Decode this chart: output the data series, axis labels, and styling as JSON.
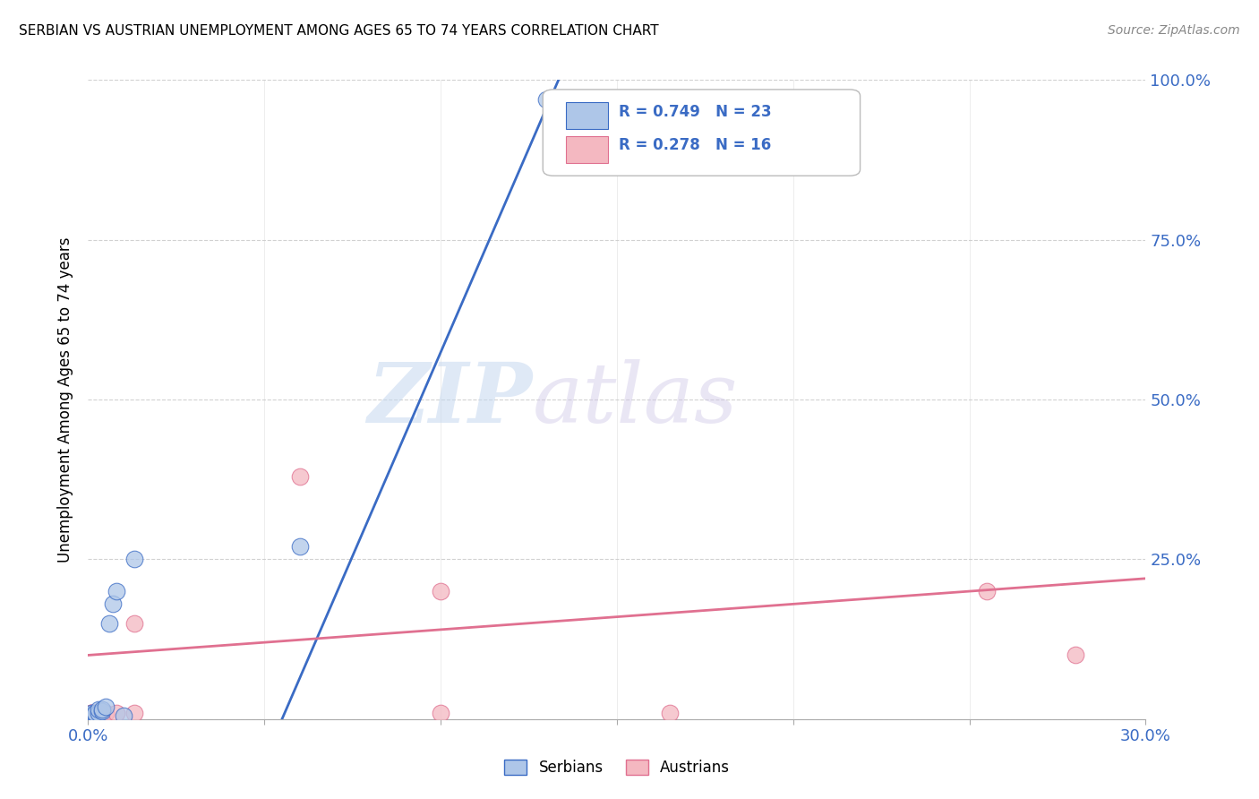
{
  "title": "SERBIAN VS AUSTRIAN UNEMPLOYMENT AMONG AGES 65 TO 74 YEARS CORRELATION CHART",
  "source": "Source: ZipAtlas.com",
  "ylabel_text": "Unemployment Among Ages 65 to 74 years",
  "xlim": [
    0.0,
    0.3
  ],
  "ylim": [
    0.0,
    1.0
  ],
  "xticks": [
    0.0,
    0.05,
    0.1,
    0.15,
    0.2,
    0.25,
    0.3
  ],
  "xticklabels": [
    "0.0%",
    "",
    "",
    "",
    "",
    "",
    "30.0%"
  ],
  "yticks": [
    0.0,
    0.25,
    0.5,
    0.75,
    1.0
  ],
  "ytick_right_labels": [
    "",
    "25.0%",
    "50.0%",
    "75.0%",
    "100.0%"
  ],
  "serbian_color": "#aec6e8",
  "austrian_color": "#f4b8c1",
  "serbian_line_color": "#3a6bc4",
  "austrian_line_color": "#e07090",
  "r_serbian": 0.749,
  "n_serbian": 23,
  "r_austrian": 0.278,
  "n_austrian": 16,
  "watermark_zip": "ZIP",
  "watermark_atlas": "atlas",
  "serbian_x": [
    0.001,
    0.001,
    0.001,
    0.001,
    0.001,
    0.001,
    0.001,
    0.002,
    0.002,
    0.002,
    0.002,
    0.003,
    0.003,
    0.004,
    0.004,
    0.005,
    0.006,
    0.007,
    0.008,
    0.01,
    0.013,
    0.06,
    0.13
  ],
  "serbian_y": [
    0.003,
    0.004,
    0.005,
    0.006,
    0.007,
    0.008,
    0.01,
    0.003,
    0.005,
    0.008,
    0.01,
    0.01,
    0.015,
    0.012,
    0.015,
    0.02,
    0.15,
    0.18,
    0.2,
    0.005,
    0.25,
    0.27,
    0.97
  ],
  "austrian_x": [
    0.001,
    0.001,
    0.001,
    0.002,
    0.003,
    0.004,
    0.005,
    0.008,
    0.013,
    0.013,
    0.06,
    0.1,
    0.1,
    0.165,
    0.255,
    0.28
  ],
  "austrian_y": [
    0.01,
    0.01,
    0.01,
    0.01,
    0.01,
    0.01,
    0.01,
    0.01,
    0.15,
    0.01,
    0.38,
    0.01,
    0.2,
    0.01,
    0.2,
    0.1
  ],
  "serbian_line_x": [
    0.055,
    0.135
  ],
  "serbian_line_y": [
    0.0,
    1.02
  ],
  "austrian_line_x": [
    0.0,
    0.3
  ],
  "austrian_line_y": [
    0.1,
    0.22
  ]
}
